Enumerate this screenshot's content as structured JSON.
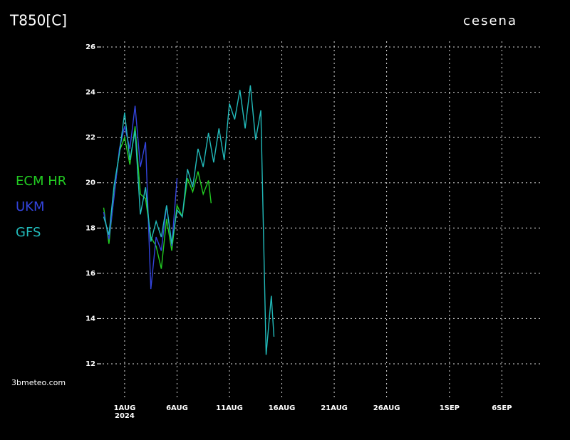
{
  "chart_data": {
    "type": "line",
    "title": "T850[C]",
    "location": "cesena",
    "source": "3bmeteo.com",
    "year_label": "2024",
    "xlim": [
      "2024-07-29T15:00",
      "2024-09-09T22:00"
    ],
    "xticks": [
      {
        "value": "2024-08-01T00:00",
        "label": "1AUG"
      },
      {
        "value": "2024-08-06T00:00",
        "label": "6AUG"
      },
      {
        "value": "2024-08-11T00:00",
        "label": "11AUG"
      },
      {
        "value": "2024-08-16T00:00",
        "label": "16AUG"
      },
      {
        "value": "2024-08-21T00:00",
        "label": "21AUG"
      },
      {
        "value": "2024-08-26T00:00",
        "label": "26AUG"
      },
      {
        "value": "2024-09-01T00:00",
        "label": "1SEP"
      },
      {
        "value": "2024-09-06T00:00",
        "label": "6SEP"
      }
    ],
    "ylim": [
      12,
      26
    ],
    "yticks": [
      12,
      14,
      16,
      18,
      20,
      22,
      24,
      26
    ],
    "grid": true,
    "series": [
      {
        "name": "ECM  HR",
        "color": "#22cc22",
        "x": [
          "2024-07-30T00:00",
          "2024-07-30T12:00",
          "2024-07-31T00:00",
          "2024-07-31T12:00",
          "2024-08-01T00:00",
          "2024-08-01T12:00",
          "2024-08-02T00:00",
          "2024-08-02T12:00",
          "2024-08-03T00:00",
          "2024-08-03T12:00",
          "2024-08-04T00:00",
          "2024-08-04T12:00",
          "2024-08-05T00:00",
          "2024-08-05T12:00",
          "2024-08-06T00:00",
          "2024-08-06T12:00",
          "2024-08-07T00:00",
          "2024-08-07T12:00",
          "2024-08-08T00:00",
          "2024-08-08T12:00",
          "2024-08-09T00:00",
          "2024-08-09T06:00"
        ],
        "values": [
          18.9,
          17.3,
          19.5,
          21.4,
          22.0,
          20.8,
          22.5,
          19.5,
          19.3,
          17.6,
          17.2,
          16.2,
          18.4,
          17.0,
          19.0,
          18.5,
          20.2,
          19.6,
          20.5,
          19.5,
          20.1,
          19.1
        ]
      },
      {
        "name": "UKM",
        "color": "#3344dd",
        "x": [
          "2024-07-30T00:00",
          "2024-07-30T12:00",
          "2024-07-31T00:00",
          "2024-07-31T12:00",
          "2024-08-01T00:00",
          "2024-08-01T12:00",
          "2024-08-02T00:00",
          "2024-08-02T12:00",
          "2024-08-03T00:00",
          "2024-08-03T12:00",
          "2024-08-04T00:00",
          "2024-08-04T12:00",
          "2024-08-05T00:00",
          "2024-08-05T12:00",
          "2024-08-06T00:00"
        ],
        "values": [
          18.7,
          17.5,
          19.4,
          21.5,
          22.5,
          21.5,
          23.4,
          20.7,
          21.8,
          15.3,
          17.6,
          17.0,
          19.0,
          17.2,
          20.2
        ]
      },
      {
        "name": "GFS",
        "color": "#22bbbb",
        "x": [
          "2024-07-30T00:00",
          "2024-07-30T12:00",
          "2024-07-31T00:00",
          "2024-07-31T12:00",
          "2024-08-01T00:00",
          "2024-08-01T12:00",
          "2024-08-02T00:00",
          "2024-08-02T12:00",
          "2024-08-03T00:00",
          "2024-08-03T12:00",
          "2024-08-04T00:00",
          "2024-08-04T12:00",
          "2024-08-05T00:00",
          "2024-08-05T12:00",
          "2024-08-06T00:00",
          "2024-08-06T12:00",
          "2024-08-07T00:00",
          "2024-08-07T12:00",
          "2024-08-08T00:00",
          "2024-08-08T12:00",
          "2024-08-09T00:00",
          "2024-08-09T12:00",
          "2024-08-10T00:00",
          "2024-08-10T12:00",
          "2024-08-11T00:00",
          "2024-08-11T12:00",
          "2024-08-12T00:00",
          "2024-08-12T12:00",
          "2024-08-13T00:00",
          "2024-08-13T12:00",
          "2024-08-14T00:00",
          "2024-08-14T12:00",
          "2024-08-15T00:00",
          "2024-08-15T06:00"
        ],
        "values": [
          18.5,
          17.7,
          19.9,
          21.3,
          23.1,
          21.0,
          22.3,
          18.6,
          19.8,
          17.4,
          18.3,
          17.6,
          19.0,
          17.3,
          18.8,
          18.5,
          20.6,
          19.8,
          21.5,
          20.7,
          22.2,
          20.9,
          22.4,
          21.0,
          23.5,
          22.8,
          24.1,
          22.4,
          24.3,
          21.9,
          23.2,
          12.4,
          15.0,
          13.2
        ]
      }
    ]
  }
}
